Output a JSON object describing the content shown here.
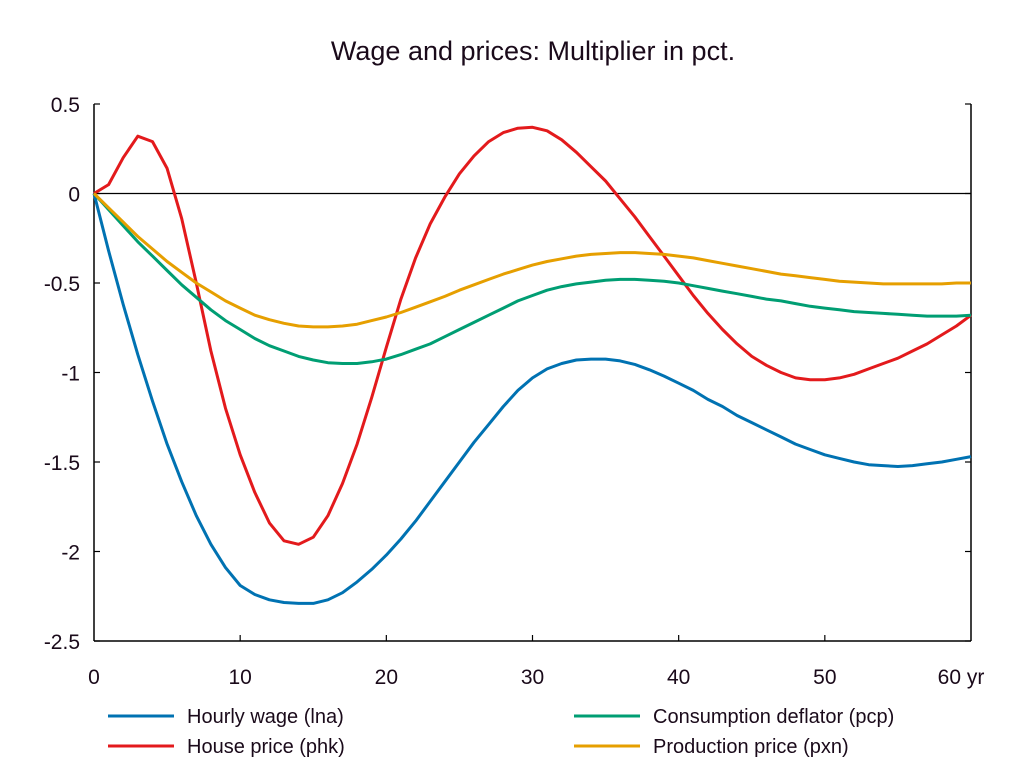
{
  "chart_data": {
    "type": "line",
    "title": "Wage and prices: Multiplier in pct.",
    "xlabel": "",
    "ylabel": "",
    "x_unit_suffix": "yr",
    "xlim": [
      0,
      60
    ],
    "ylim": [
      -2.5,
      0.5
    ],
    "x_ticks": [
      0,
      10,
      20,
      30,
      40,
      50,
      60
    ],
    "x_tick_labels": [
      "0",
      "10",
      "20",
      "30",
      "40",
      "50",
      "60 yr"
    ],
    "y_ticks": [
      0.5,
      0,
      -0.5,
      -1,
      -1.5,
      -2,
      -2.5
    ],
    "y_tick_labels": [
      "0.5",
      "0",
      "-0.5",
      "-1",
      "-1.5",
      "-2",
      "-2.5"
    ],
    "zero_line": true,
    "grid": false,
    "legend_position": "bottom",
    "x": [
      0,
      1,
      2,
      3,
      4,
      5,
      6,
      7,
      8,
      9,
      10,
      11,
      12,
      13,
      14,
      15,
      16,
      17,
      18,
      19,
      20,
      21,
      22,
      23,
      24,
      25,
      26,
      27,
      28,
      29,
      30,
      31,
      32,
      33,
      34,
      35,
      36,
      37,
      38,
      39,
      40,
      41,
      42,
      43,
      44,
      45,
      46,
      47,
      48,
      49,
      50,
      51,
      52,
      53,
      54,
      55,
      56,
      57,
      58,
      59,
      60
    ],
    "series": [
      {
        "name": "Hourly wage (lna)",
        "color": "#0072b2",
        "values": [
          0,
          -0.32,
          -0.62,
          -0.9,
          -1.16,
          -1.4,
          -1.61,
          -1.8,
          -1.96,
          -2.09,
          -2.19,
          -2.24,
          -2.27,
          -2.285,
          -2.29,
          -2.29,
          -2.27,
          -2.23,
          -2.17,
          -2.1,
          -2.02,
          -1.93,
          -1.83,
          -1.72,
          -1.61,
          -1.5,
          -1.39,
          -1.29,
          -1.19,
          -1.1,
          -1.03,
          -0.98,
          -0.95,
          -0.93,
          -0.925,
          -0.925,
          -0.935,
          -0.955,
          -0.985,
          -1.02,
          -1.06,
          -1.1,
          -1.15,
          -1.19,
          -1.24,
          -1.28,
          -1.32,
          -1.36,
          -1.4,
          -1.43,
          -1.46,
          -1.48,
          -1.5,
          -1.515,
          -1.52,
          -1.525,
          -1.52,
          -1.51,
          -1.5,
          -1.485,
          -1.47
        ]
      },
      {
        "name": "House price (phk)",
        "color": "#e31a1c",
        "values": [
          0,
          0.05,
          0.2,
          0.32,
          0.29,
          0.14,
          -0.14,
          -0.5,
          -0.88,
          -1.2,
          -1.46,
          -1.67,
          -1.84,
          -1.94,
          -1.96,
          -1.92,
          -1.8,
          -1.62,
          -1.4,
          -1.14,
          -0.86,
          -0.59,
          -0.36,
          -0.17,
          -0.02,
          0.11,
          0.21,
          0.29,
          0.34,
          0.365,
          0.37,
          0.35,
          0.3,
          0.23,
          0.15,
          0.07,
          -0.03,
          -0.13,
          -0.24,
          -0.35,
          -0.46,
          -0.57,
          -0.67,
          -0.76,
          -0.84,
          -0.91,
          -0.96,
          -1.0,
          -1.03,
          -1.04,
          -1.04,
          -1.03,
          -1.01,
          -0.98,
          -0.95,
          -0.92,
          -0.88,
          -0.84,
          -0.79,
          -0.74,
          -0.68
        ]
      },
      {
        "name": "Consumption deflator (pcp)",
        "color": "#009e73",
        "values": [
          0,
          -0.09,
          -0.18,
          -0.27,
          -0.35,
          -0.43,
          -0.51,
          -0.58,
          -0.65,
          -0.71,
          -0.76,
          -0.81,
          -0.85,
          -0.88,
          -0.91,
          -0.93,
          -0.945,
          -0.95,
          -0.95,
          -0.94,
          -0.925,
          -0.9,
          -0.87,
          -0.84,
          -0.8,
          -0.76,
          -0.72,
          -0.68,
          -0.64,
          -0.6,
          -0.57,
          -0.54,
          -0.52,
          -0.505,
          -0.495,
          -0.485,
          -0.48,
          -0.48,
          -0.485,
          -0.49,
          -0.5,
          -0.515,
          -0.53,
          -0.545,
          -0.56,
          -0.575,
          -0.59,
          -0.6,
          -0.615,
          -0.63,
          -0.64,
          -0.65,
          -0.66,
          -0.665,
          -0.67,
          -0.675,
          -0.68,
          -0.685,
          -0.685,
          -0.685,
          -0.68
        ]
      },
      {
        "name": "Production price (pxn)",
        "color": "#e69f00",
        "values": [
          0,
          -0.08,
          -0.16,
          -0.24,
          -0.31,
          -0.38,
          -0.44,
          -0.5,
          -0.55,
          -0.6,
          -0.64,
          -0.68,
          -0.705,
          -0.725,
          -0.74,
          -0.745,
          -0.745,
          -0.74,
          -0.73,
          -0.71,
          -0.69,
          -0.665,
          -0.635,
          -0.605,
          -0.575,
          -0.54,
          -0.51,
          -0.48,
          -0.45,
          -0.425,
          -0.4,
          -0.38,
          -0.365,
          -0.35,
          -0.34,
          -0.335,
          -0.33,
          -0.33,
          -0.335,
          -0.34,
          -0.35,
          -0.36,
          -0.375,
          -0.39,
          -0.405,
          -0.42,
          -0.435,
          -0.45,
          -0.46,
          -0.47,
          -0.48,
          -0.49,
          -0.495,
          -0.5,
          -0.505,
          -0.505,
          -0.505,
          -0.505,
          -0.505,
          -0.5,
          -0.5
        ]
      }
    ]
  }
}
